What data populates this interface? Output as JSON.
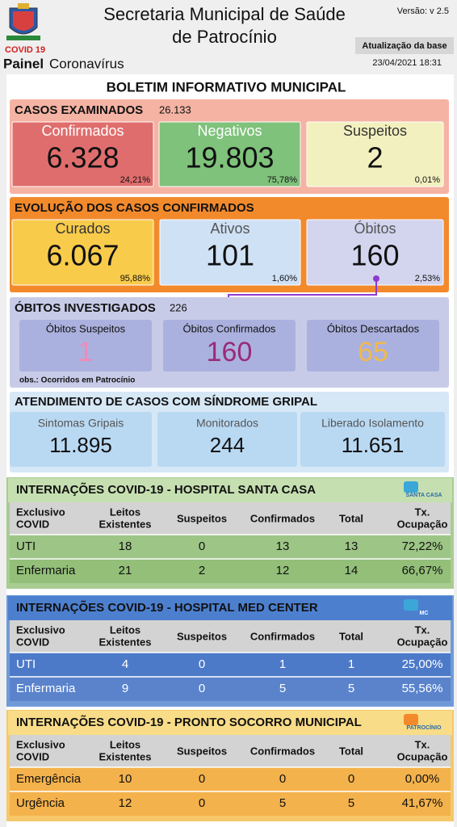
{
  "header": {
    "covid": "COVID 19",
    "painel": "Painel",
    "painel_sub": "Coronavírus",
    "title_line1": "Secretaria Municipal de Saúde",
    "title_line2": "de Patrocínio",
    "version": "Versão: v 2.5",
    "update_button": "Atualização da base",
    "date": "23/04/2021 18:31"
  },
  "bulletin_title": "BOLETIM INFORMATIVO MUNICIPAL",
  "casos_examinados": {
    "title": "CASOS EXAMINADOS",
    "total": "26.133",
    "cards": [
      {
        "label": "Confirmados",
        "value": "6.328",
        "percent": "24,21%"
      },
      {
        "label": "Negativos",
        "value": "19.803",
        "percent": "75,78%"
      },
      {
        "label": "Suspeitos",
        "value": "2",
        "percent": "0,01%"
      }
    ]
  },
  "evolucao": {
    "title": "EVOLUÇÃO DOS CASOS CONFIRMADOS",
    "cards": [
      {
        "label": "Curados",
        "value": "6.067",
        "percent": "95,88%"
      },
      {
        "label": "Ativos",
        "value": "101",
        "percent": "1,60%"
      },
      {
        "label": "Óbitos",
        "value": "160",
        "percent": "2,53%"
      }
    ]
  },
  "obitos_investigados": {
    "title": "ÓBITOS INVESTIGADOS",
    "total": "226",
    "note": "obs.: Ocorridos em Patrocínio",
    "cards": [
      {
        "label": "Óbitos Suspeitos",
        "value": "1"
      },
      {
        "label": "Óbitos Confirmados",
        "value": "160"
      },
      {
        "label": "Óbitos Descartados",
        "value": "65"
      }
    ]
  },
  "sindrome_gripal": {
    "title": "ATENDIMENTO DE CASOS COM SÍNDROME GRIPAL",
    "cards": [
      {
        "label": "Sintomas Gripais",
        "value": "11.895"
      },
      {
        "label": "Monitorados",
        "value": "244"
      },
      {
        "label": "Liberado Isolamento",
        "value": "11.651"
      }
    ]
  },
  "tables": [
    {
      "title": "INTERNAÇÕES COVID-19 - HOSPITAL SANTA CASA",
      "logo": "SANTA CASA",
      "columns": [
        [
          "Exclusivo",
          "COVID"
        ],
        [
          "Leitos",
          "Existentes"
        ],
        [
          "Suspeitos"
        ],
        [
          "Confirmados"
        ],
        [
          "Total"
        ],
        [
          "Tx.",
          "Ocupação"
        ]
      ],
      "rows": [
        [
          "UTI",
          "18",
          "0",
          "13",
          "13",
          "72,22%"
        ],
        [
          "Enfermaria",
          "21",
          "2",
          "12",
          "14",
          "66,67%"
        ]
      ]
    },
    {
      "title": "INTERNAÇÕES COVID-19 - HOSPITAL MED CENTER",
      "logo": "MC",
      "columns": [
        [
          "Exclusivo",
          "COVID"
        ],
        [
          "Leitos",
          "Existentes"
        ],
        [
          "Suspeitos"
        ],
        [
          "Confirmados"
        ],
        [
          "Total"
        ],
        [
          "Tx.",
          "Ocupação"
        ]
      ],
      "rows": [
        [
          "UTI",
          "4",
          "0",
          "1",
          "1",
          "25,00%"
        ],
        [
          "Enfermaria",
          "9",
          "0",
          "5",
          "5",
          "55,56%"
        ]
      ]
    },
    {
      "title": "INTERNAÇÕES COVID-19 - PRONTO SOCORRO MUNICIPAL",
      "logo": "PATROCÍNIO",
      "columns": [
        [
          "Exclusivo",
          "COVID"
        ],
        [
          "Leitos",
          "Existentes"
        ],
        [
          "Suspeitos"
        ],
        [
          "Confirmados"
        ],
        [
          "Total"
        ],
        [
          "Tx.",
          "Ocupação"
        ]
      ],
      "rows": [
        [
          "Emergência",
          "10",
          "0",
          "0",
          "0",
          "0,00%"
        ],
        [
          "Urgência",
          "12",
          "0",
          "5",
          "5",
          "41,67%"
        ]
      ]
    }
  ]
}
